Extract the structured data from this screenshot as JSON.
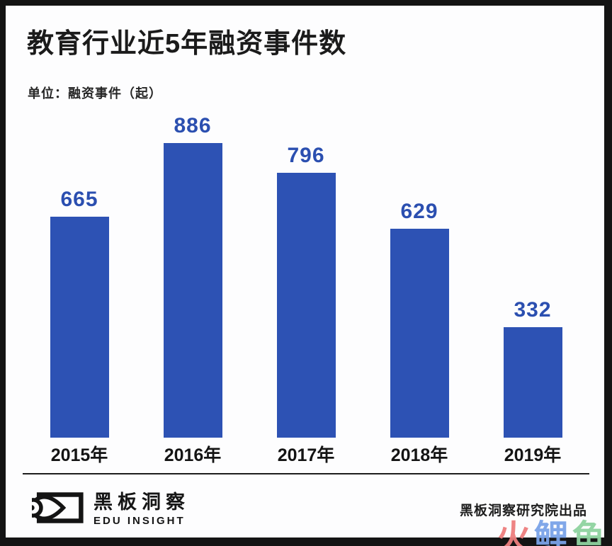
{
  "header": {
    "title": "教育行业近5年融资事件数",
    "unit_label": "单位：融资事件（起）"
  },
  "chart_data": {
    "type": "bar",
    "categories": [
      "2015年",
      "2016年",
      "2017年",
      "2018年",
      "2019年"
    ],
    "values": [
      665,
      886,
      796,
      629,
      332
    ],
    "title": "教育行业近5年融资事件数",
    "xlabel": "",
    "ylabel": "融资事件（起）",
    "ylim": [
      0,
      900
    ],
    "grid": false,
    "legend": false,
    "bar_color": "#2D52B4",
    "value_label_color": "#2B4FB0"
  },
  "footer": {
    "brand_name": "黑板洞察",
    "brand_subtitle": "EDU INSIGHT",
    "credit": "黑板洞察研究院出品"
  },
  "watermark": {
    "chars": [
      {
        "text": "火",
        "color": "#EE7E7E"
      },
      {
        "text": "鲤",
        "color": "#7AA3E8"
      },
      {
        "text": "鱼",
        "color": "#8FD3A0"
      }
    ]
  }
}
